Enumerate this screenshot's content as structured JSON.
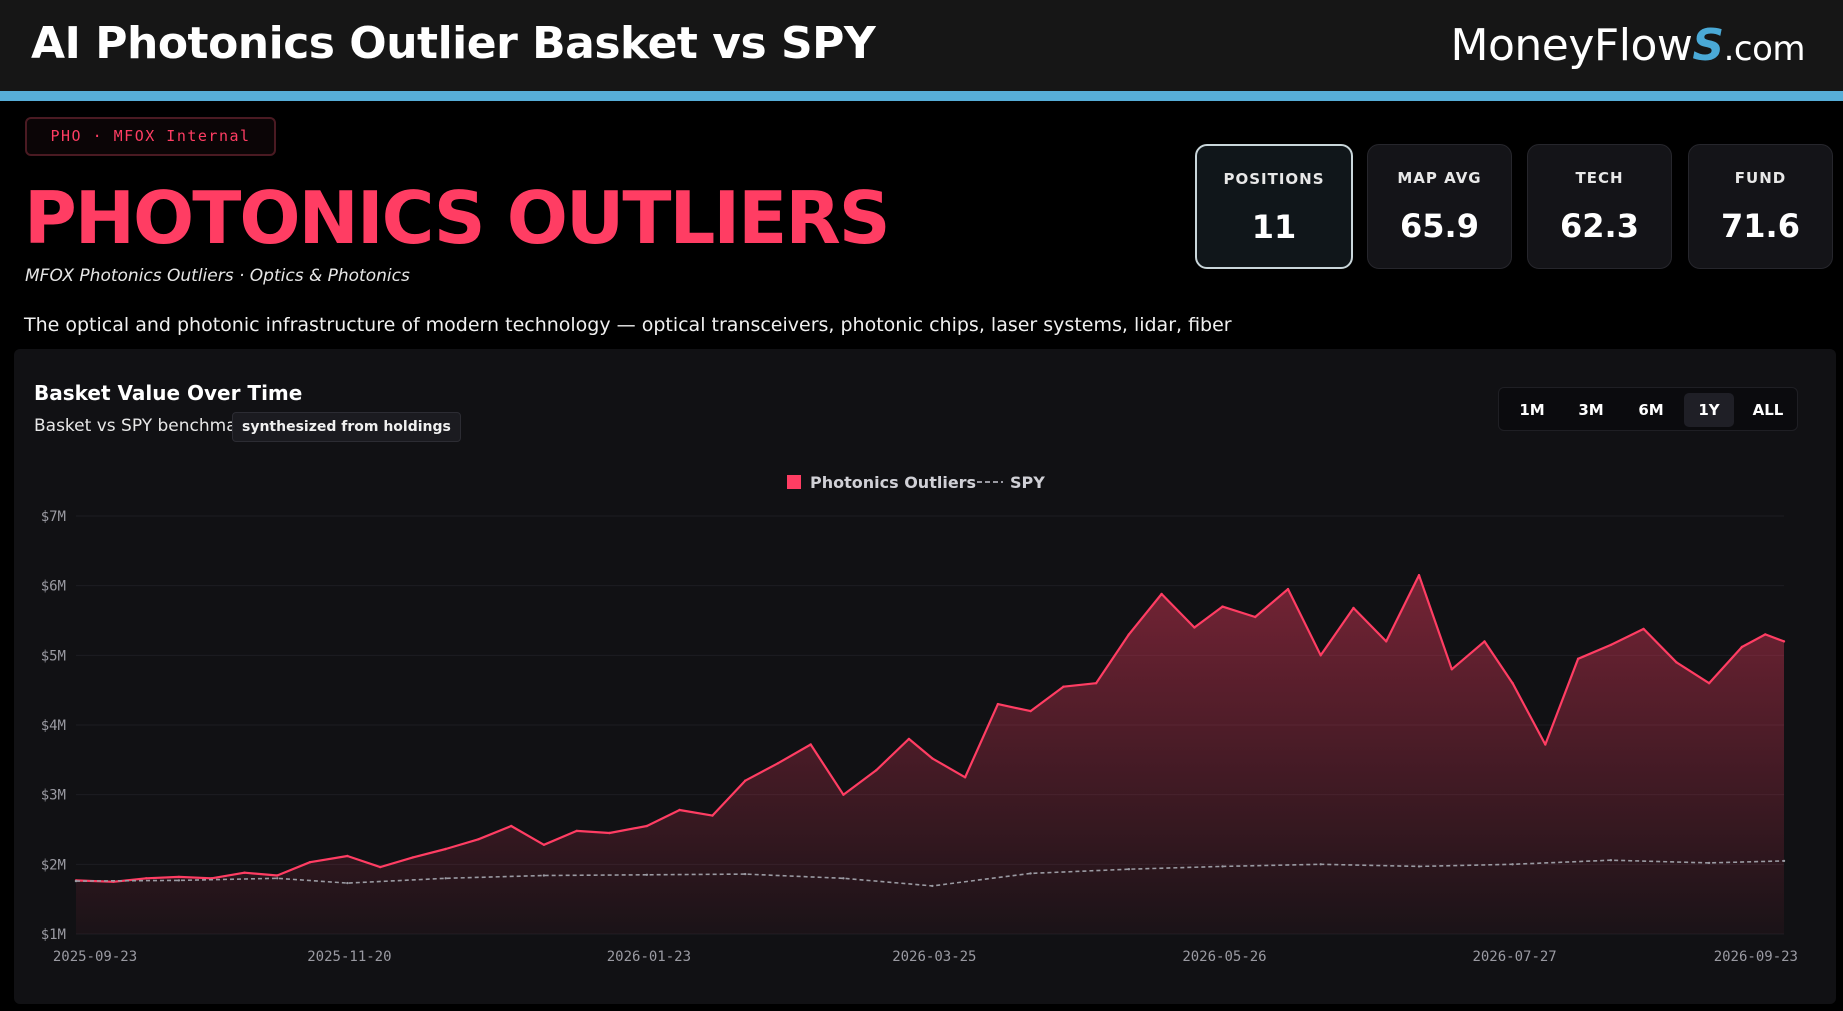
{
  "header": {
    "title": "AI Photonics Outlier Basket vs SPY",
    "brand": {
      "main": "MoneyFlow",
      "s": "S",
      "suffix": ".com"
    }
  },
  "colors": {
    "accent": "#57aed8",
    "primary": "#ff3d63",
    "spy": "#9a9aa2"
  },
  "hero": {
    "tag": "PHO · MFOX Internal",
    "title": "PHOTONICS OUTLIERS",
    "subtitle": "MFOX Photonics Outliers · Optics & Photonics",
    "description": "The optical and photonic infrastructure of modern technology — optical transceivers, photonic chips, laser systems, lidar, fiber"
  },
  "stats": [
    {
      "label": "POSITIONS",
      "value": "11",
      "active": true
    },
    {
      "label": "MAP AVG",
      "value": "65.9",
      "active": false
    },
    {
      "label": "TECH",
      "value": "62.3",
      "active": false
    },
    {
      "label": "FUND",
      "value": "71.6",
      "active": false
    }
  ],
  "chart_panel": {
    "title": "Basket Value Over Time",
    "subtitle": "Basket vs SPY benchmark",
    "badge": "synthesized from holdings",
    "ranges": [
      "1M",
      "3M",
      "6M",
      "1Y",
      "ALL"
    ],
    "active_range": "1Y"
  },
  "chart_data": {
    "type": "area",
    "x_ticks": [
      "2025-09-23",
      "2025-11-20",
      "2026-01-23",
      "2026-03-25",
      "2026-05-26",
      "2026-07-27",
      "2026-09-23"
    ],
    "y_ticks": [
      "$1M",
      "$2M",
      "$3M",
      "$4M",
      "$5M",
      "$6M",
      "$7M"
    ],
    "ylim": [
      1,
      7
    ],
    "y_unit": "$M",
    "grid": true,
    "legend_position": "top-center",
    "series": [
      {
        "name": "Photonics Outliers",
        "style": "filled-area",
        "color": "#ff3d63",
        "points": [
          [
            "2025-09-23",
            1.77
          ],
          [
            "2025-10-01",
            1.75
          ],
          [
            "2025-10-08",
            1.8
          ],
          [
            "2025-10-15",
            1.82
          ],
          [
            "2025-10-22",
            1.8
          ],
          [
            "2025-10-29",
            1.88
          ],
          [
            "2025-11-05",
            1.84
          ],
          [
            "2025-11-12",
            2.03
          ],
          [
            "2025-11-20",
            2.12
          ],
          [
            "2025-11-27",
            1.96
          ],
          [
            "2025-12-04",
            2.1
          ],
          [
            "2025-12-11",
            2.22
          ],
          [
            "2025-12-18",
            2.36
          ],
          [
            "2025-12-25",
            2.55
          ],
          [
            "2026-01-01",
            2.28
          ],
          [
            "2026-01-08",
            2.48
          ],
          [
            "2026-01-15",
            2.45
          ],
          [
            "2026-01-23",
            2.55
          ],
          [
            "2026-01-30",
            2.78
          ],
          [
            "2026-02-06",
            2.7
          ],
          [
            "2026-02-13",
            3.2
          ],
          [
            "2026-02-20",
            3.45
          ],
          [
            "2026-02-27",
            3.72
          ],
          [
            "2026-03-06",
            3.0
          ],
          [
            "2026-03-13",
            3.35
          ],
          [
            "2026-03-20",
            3.8
          ],
          [
            "2026-03-25",
            3.52
          ],
          [
            "2026-04-01",
            3.25
          ],
          [
            "2026-04-08",
            4.3
          ],
          [
            "2026-04-15",
            4.2
          ],
          [
            "2026-04-22",
            4.55
          ],
          [
            "2026-04-29",
            4.6
          ],
          [
            "2026-05-06",
            5.3
          ],
          [
            "2026-05-13",
            5.88
          ],
          [
            "2026-05-20",
            5.4
          ],
          [
            "2026-05-26",
            5.7
          ],
          [
            "2026-06-02",
            5.55
          ],
          [
            "2026-06-09",
            5.95
          ],
          [
            "2026-06-16",
            5.0
          ],
          [
            "2026-06-23",
            5.68
          ],
          [
            "2026-06-30",
            5.2
          ],
          [
            "2026-07-07",
            6.15
          ],
          [
            "2026-07-14",
            4.8
          ],
          [
            "2026-07-21",
            5.2
          ],
          [
            "2026-07-27",
            4.6
          ],
          [
            "2026-08-03",
            3.72
          ],
          [
            "2026-08-10",
            4.95
          ],
          [
            "2026-08-17",
            5.15
          ],
          [
            "2026-08-24",
            5.38
          ],
          [
            "2026-08-31",
            4.9
          ],
          [
            "2026-09-07",
            4.6
          ],
          [
            "2026-09-14",
            5.12
          ],
          [
            "2026-09-19",
            5.3
          ],
          [
            "2026-09-23",
            5.2
          ]
        ]
      },
      {
        "name": "SPY",
        "style": "dashed-line",
        "color": "#9a9aa2",
        "points": [
          [
            "2025-09-23",
            1.76
          ],
          [
            "2025-10-15",
            1.77
          ],
          [
            "2025-11-05",
            1.8
          ],
          [
            "2025-11-20",
            1.73
          ],
          [
            "2025-12-11",
            1.8
          ],
          [
            "2026-01-01",
            1.84
          ],
          [
            "2026-01-23",
            1.85
          ],
          [
            "2026-02-13",
            1.86
          ],
          [
            "2026-03-06",
            1.8
          ],
          [
            "2026-03-25",
            1.69
          ],
          [
            "2026-04-15",
            1.87
          ],
          [
            "2026-05-06",
            1.93
          ],
          [
            "2026-05-26",
            1.97
          ],
          [
            "2026-06-16",
            2.0
          ],
          [
            "2026-07-07",
            1.97
          ],
          [
            "2026-07-27",
            2.0
          ],
          [
            "2026-08-17",
            2.06
          ],
          [
            "2026-09-07",
            2.02
          ],
          [
            "2026-09-23",
            2.05
          ]
        ]
      }
    ]
  }
}
